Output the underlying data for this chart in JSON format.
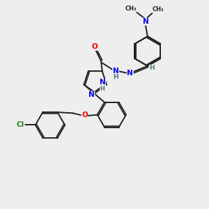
{
  "bg_color": "#eeeeee",
  "bond_color": "#222222",
  "bond_width": 1.4,
  "atom_colors": {
    "N": "#0000ee",
    "O": "#ee0000",
    "Cl": "#228822",
    "C": "#222222",
    "H": "#557777"
  },
  "font_size": 7.5
}
